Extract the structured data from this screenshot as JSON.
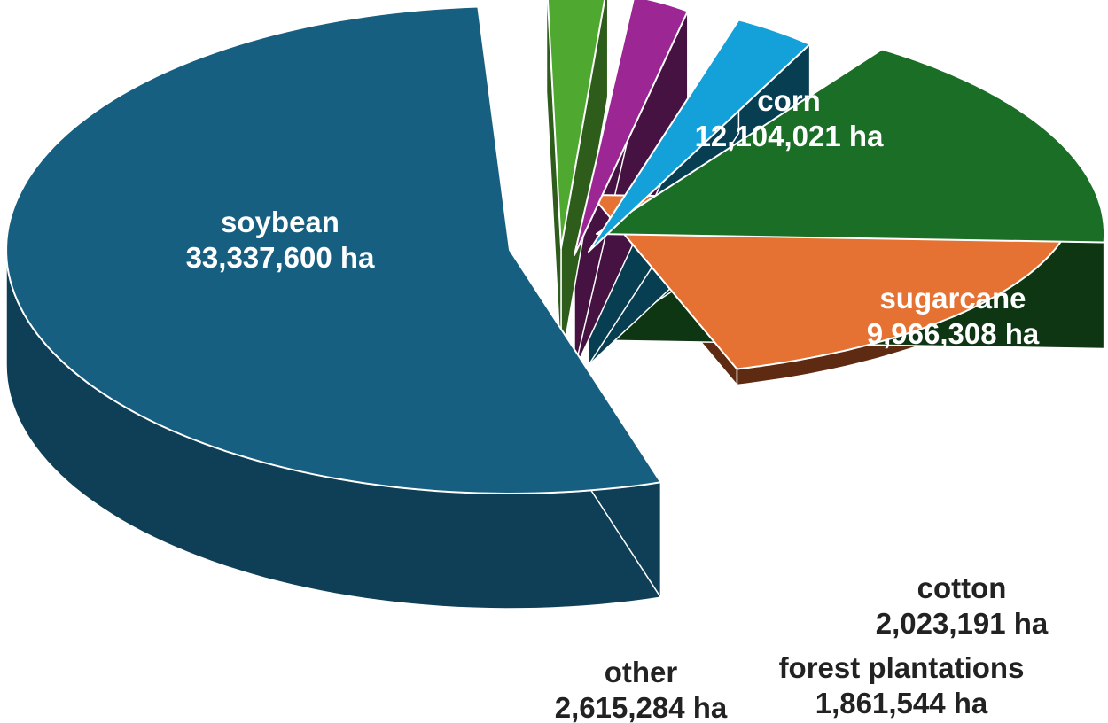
{
  "chart_data": {
    "type": "pie",
    "style": "3d-exploded",
    "unit": "ha",
    "slices": [
      {
        "key": "soybean",
        "label": "soybean",
        "value": 33337600,
        "value_text": "33,337,600 ha",
        "color": "#175f80",
        "side_color": "#0f3f57",
        "label_color": "#ffffff"
      },
      {
        "key": "corn",
        "label": "corn",
        "value": 12104021,
        "value_text": "12,104,021 ha",
        "color": "#e57232",
        "side_color": "#5e2b12",
        "label_color": "#ffffff"
      },
      {
        "key": "sugarcane",
        "label": "sugarcane",
        "value": 9966308,
        "value_text": "9,966,308 ha",
        "color": "#1b6e25",
        "side_color": "#0e3613",
        "label_color": "#ffffff"
      },
      {
        "key": "cotton",
        "label": "cotton",
        "value": 2023191,
        "value_text": "2,023,191 ha",
        "color": "#14a0d9",
        "side_color": "#083e52",
        "label_color": "#222222"
      },
      {
        "key": "forest_plantations",
        "label": "forest plantations",
        "value": 1861544,
        "value_text": "1,861,544 ha",
        "color": "#9c2694",
        "side_color": "#451241",
        "label_color": "#222222"
      },
      {
        "key": "other",
        "label": "other",
        "value": 2615284,
        "value_text": "2,615,284 ha",
        "color": "#4fa82f",
        "side_color": "#2d5c1b",
        "label_color": "#222222"
      }
    ]
  }
}
